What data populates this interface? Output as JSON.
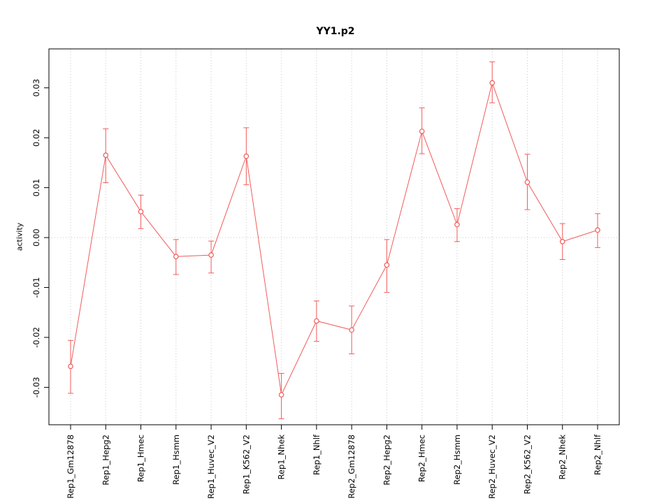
{
  "chart_data": {
    "type": "line",
    "title": "YY1.p2",
    "xlabel": "",
    "ylabel": "activity",
    "categories": [
      "Rep1_Gm12878",
      "Rep1_Hepg2",
      "Rep1_Hmec",
      "Rep1_Hsmm",
      "Rep1_Huvec_V2",
      "Rep1_K562_V2",
      "Rep1_Nhek",
      "Rep1_Nhlf",
      "Rep2_Gm12878",
      "Rep2_Hepg2",
      "Rep2_Hmec",
      "Rep2_Hsmm",
      "Rep2_Huvec_V2",
      "Rep2_K562_V2",
      "Rep2_Nhek",
      "Rep2_Nhlf"
    ],
    "series": [
      {
        "name": "activity",
        "values": [
          -0.0258,
          0.0165,
          0.0052,
          -0.0038,
          -0.0035,
          0.0163,
          -0.0315,
          -0.0167,
          -0.0185,
          -0.0055,
          0.0213,
          0.0026,
          0.031,
          0.0111,
          -0.0008,
          0.0015
        ],
        "error_low": [
          -0.0312,
          0.011,
          0.0018,
          -0.0074,
          -0.0071,
          0.0106,
          -0.0363,
          -0.0208,
          -0.0233,
          -0.011,
          0.0168,
          -0.0008,
          0.027,
          0.0056,
          -0.0044,
          -0.002
        ],
        "error_high": [
          -0.0206,
          0.0218,
          0.0085,
          -0.0004,
          -0.0007,
          0.022,
          -0.0272,
          -0.0127,
          -0.0137,
          -0.0004,
          0.026,
          0.0058,
          0.0352,
          0.0167,
          0.0028,
          0.0048
        ]
      }
    ],
    "yticks": [
      -0.03,
      -0.02,
      -0.01,
      0,
      0.01,
      0.02,
      0.03
    ],
    "ytick_labels": [
      "-0.03",
      "-0.02",
      "-0.01",
      "0.00",
      "0.01",
      "0.02",
      "0.03"
    ],
    "ylim": [
      -0.0375,
      0.0378
    ],
    "grid": "vertical-dotted-plus-zero-line",
    "legend_position": "none",
    "colors": {
      "series": "#f15b5b",
      "grid": "#c9c9c9",
      "axis": "#000000",
      "background": "#ffffff"
    }
  }
}
